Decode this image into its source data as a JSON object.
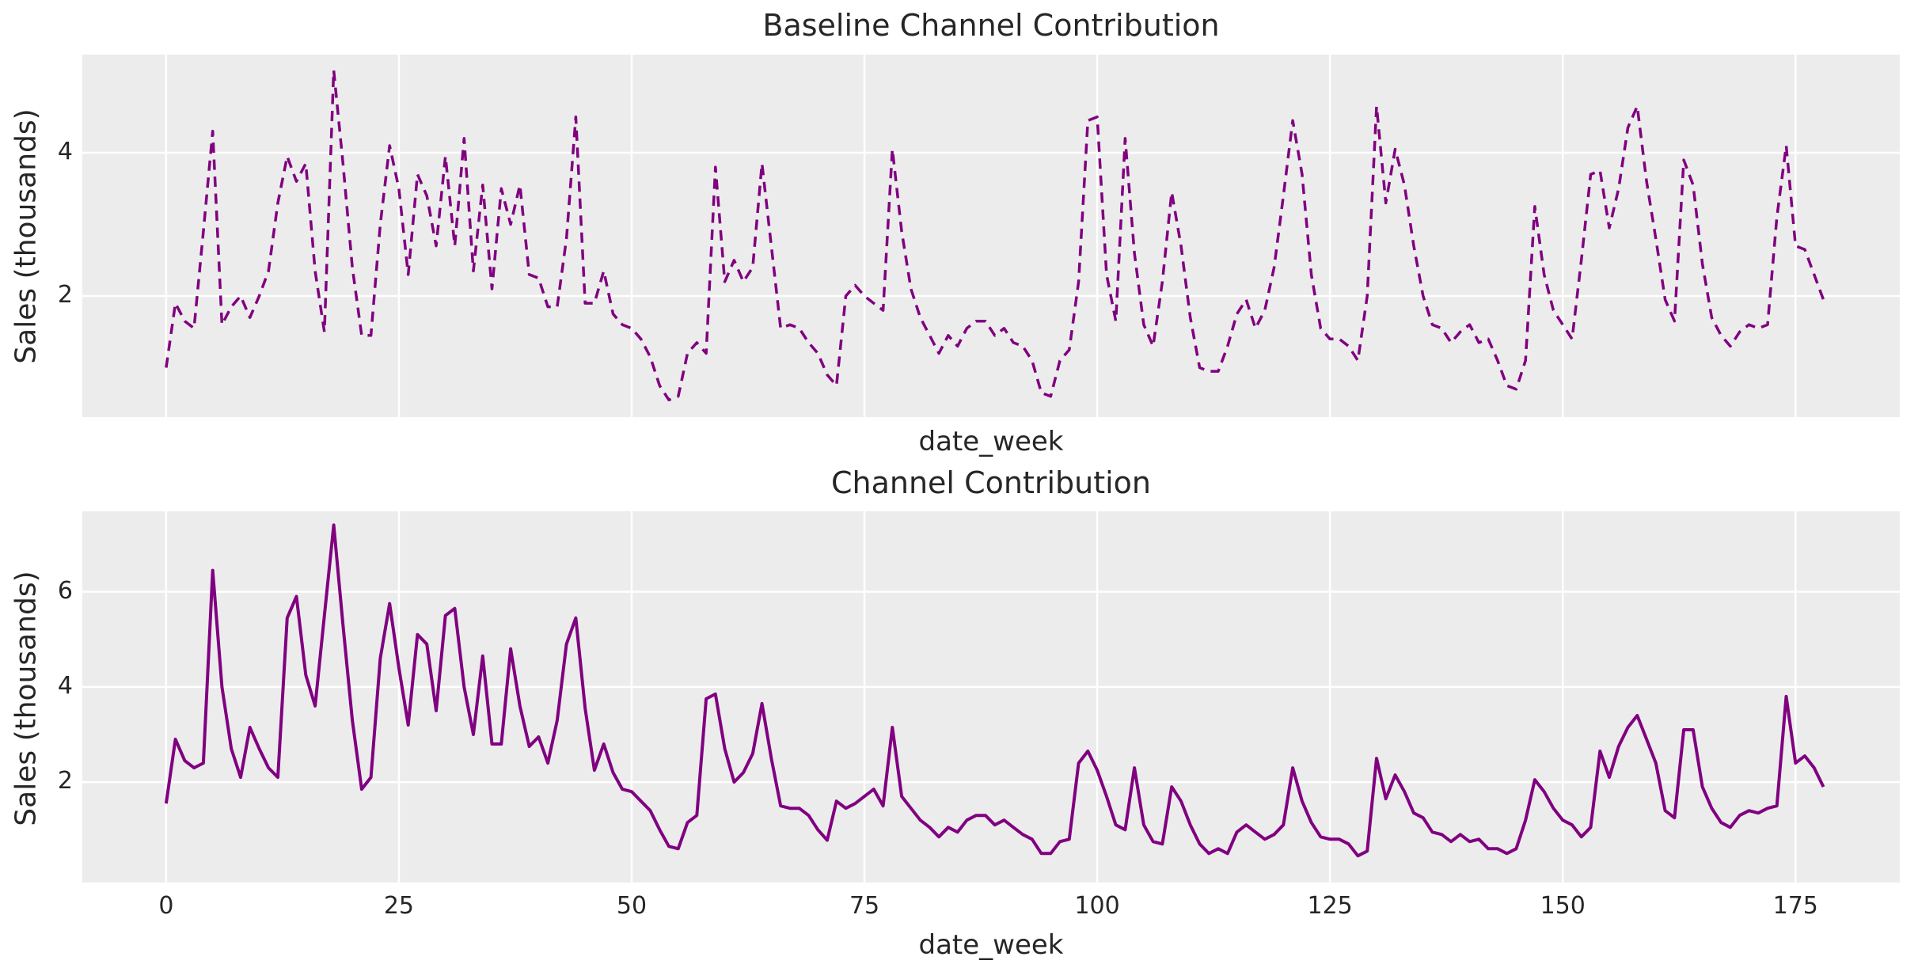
{
  "figure": {
    "background": "#ffffff",
    "axes_background": "#ececec",
    "grid_color": "#ffffff",
    "text_color": "#262626",
    "accent_line_color": "#800080"
  },
  "chart_data": [
    {
      "type": "line",
      "title": "Baseline Channel Contribution",
      "xlabel": "date_week",
      "ylabel": "Sales (thousands)",
      "series_name": "baseline-channel-contribution",
      "line_style": "dashed",
      "line_color": "#800080",
      "grid": true,
      "legend_position": "none",
      "xlim": [
        -9.0,
        186.2
      ],
      "ylim": [
        0.31,
        5.37
      ],
      "xticks": [
        0,
        25,
        50,
        75,
        100,
        125,
        150,
        175
      ],
      "xtick_labels_shown": false,
      "yticks": [
        2,
        4
      ],
      "x_start": 0,
      "x_step": 1,
      "values": [
        1.0,
        1.9,
        1.65,
        1.55,
        2.9,
        4.3,
        1.6,
        1.85,
        2.0,
        1.7,
        2.0,
        2.35,
        3.3,
        3.95,
        3.6,
        3.85,
        2.35,
        1.5,
        5.15,
        3.85,
        2.4,
        1.45,
        1.45,
        3.0,
        4.1,
        3.5,
        2.3,
        3.7,
        3.4,
        2.7,
        3.95,
        2.7,
        4.2,
        2.35,
        3.55,
        2.1,
        3.5,
        3.0,
        3.55,
        2.3,
        2.25,
        1.85,
        1.85,
        2.8,
        4.5,
        1.9,
        1.9,
        2.35,
        1.75,
        1.6,
        1.55,
        1.4,
        1.15,
        0.75,
        0.55,
        0.6,
        1.2,
        1.35,
        1.2,
        3.8,
        2.2,
        2.5,
        2.2,
        2.4,
        3.85,
        2.7,
        1.55,
        1.6,
        1.55,
        1.35,
        1.2,
        0.9,
        0.75,
        2.0,
        2.15,
        2.0,
        1.9,
        1.8,
        4.05,
        2.9,
        2.1,
        1.7,
        1.45,
        1.2,
        1.45,
        1.3,
        1.55,
        1.65,
        1.65,
        1.45,
        1.55,
        1.35,
        1.3,
        1.1,
        0.65,
        0.6,
        1.1,
        1.25,
        2.2,
        4.45,
        4.5,
        2.3,
        1.65,
        4.2,
        2.6,
        1.6,
        1.3,
        2.2,
        3.45,
        2.7,
        1.7,
        1.0,
        0.95,
        0.95,
        1.3,
        1.75,
        1.95,
        1.55,
        1.8,
        2.4,
        3.4,
        4.45,
        3.7,
        2.3,
        1.55,
        1.4,
        1.4,
        1.3,
        1.1,
        2.0,
        4.65,
        3.3,
        4.05,
        3.55,
        2.7,
        2.0,
        1.6,
        1.55,
        1.35,
        1.5,
        1.6,
        1.35,
        1.4,
        1.1,
        0.75,
        0.7,
        1.1,
        3.25,
        2.3,
        1.8,
        1.6,
        1.4,
        2.5,
        3.7,
        3.75,
        2.95,
        3.5,
        4.35,
        4.65,
        3.6,
        2.8,
        1.95,
        1.65,
        3.9,
        3.55,
        2.45,
        1.7,
        1.45,
        1.3,
        1.5,
        1.6,
        1.55,
        1.6,
        3.1,
        4.1,
        2.7,
        2.65,
        2.3,
        1.95
      ]
    },
    {
      "type": "line",
      "title": "Channel Contribution",
      "xlabel": "date_week",
      "ylabel": "Sales (thousands)",
      "series_name": "channel-contribution",
      "line_style": "solid",
      "line_color": "#800080",
      "grid": true,
      "legend_position": "none",
      "xlim": [
        -9.0,
        186.2
      ],
      "ylim": [
        -0.11,
        7.69
      ],
      "xticks": [
        0,
        25,
        50,
        75,
        100,
        125,
        150,
        175
      ],
      "xtick_labels_shown": true,
      "yticks": [
        2,
        4,
        6
      ],
      "x_start": 0,
      "x_step": 1,
      "values": [
        1.55,
        2.9,
        2.45,
        2.3,
        2.4,
        6.45,
        4.0,
        2.7,
        2.1,
        3.15,
        2.7,
        2.3,
        2.1,
        5.45,
        5.9,
        4.25,
        3.6,
        5.5,
        7.4,
        5.3,
        3.3,
        1.85,
        2.1,
        4.6,
        5.75,
        4.4,
        3.2,
        5.1,
        4.9,
        3.5,
        5.5,
        5.65,
        4.0,
        3.0,
        4.65,
        2.8,
        2.8,
        4.8,
        3.6,
        2.75,
        2.95,
        2.4,
        3.3,
        4.9,
        5.45,
        3.55,
        2.25,
        2.8,
        2.2,
        1.85,
        1.8,
        1.6,
        1.4,
        1.0,
        0.65,
        0.6,
        1.15,
        1.3,
        3.75,
        3.85,
        2.7,
        2.0,
        2.2,
        2.6,
        3.65,
        2.5,
        1.5,
        1.45,
        1.45,
        1.3,
        1.0,
        0.78,
        1.6,
        1.45,
        1.55,
        1.7,
        1.85,
        1.5,
        3.15,
        1.7,
        1.45,
        1.2,
        1.05,
        0.85,
        1.05,
        0.95,
        1.2,
        1.3,
        1.3,
        1.1,
        1.2,
        1.05,
        0.9,
        0.8,
        0.5,
        0.5,
        0.75,
        0.8,
        2.4,
        2.65,
        2.25,
        1.7,
        1.1,
        1.0,
        2.3,
        1.1,
        0.75,
        0.7,
        1.9,
        1.6,
        1.1,
        0.7,
        0.5,
        0.6,
        0.5,
        0.95,
        1.1,
        0.95,
        0.8,
        0.9,
        1.1,
        2.3,
        1.6,
        1.15,
        0.85,
        0.8,
        0.8,
        0.7,
        0.45,
        0.55,
        2.5,
        1.65,
        2.15,
        1.8,
        1.35,
        1.25,
        0.95,
        0.9,
        0.75,
        0.9,
        0.75,
        0.8,
        0.6,
        0.6,
        0.5,
        0.6,
        1.2,
        2.05,
        1.8,
        1.45,
        1.2,
        1.1,
        0.85,
        1.05,
        2.65,
        2.1,
        2.75,
        3.15,
        3.4,
        2.9,
        2.4,
        1.4,
        1.25,
        3.1,
        3.1,
        1.9,
        1.45,
        1.15,
        1.05,
        1.3,
        1.4,
        1.35,
        1.45,
        1.5,
        3.8,
        2.4,
        2.55,
        2.3,
        1.9
      ]
    }
  ]
}
